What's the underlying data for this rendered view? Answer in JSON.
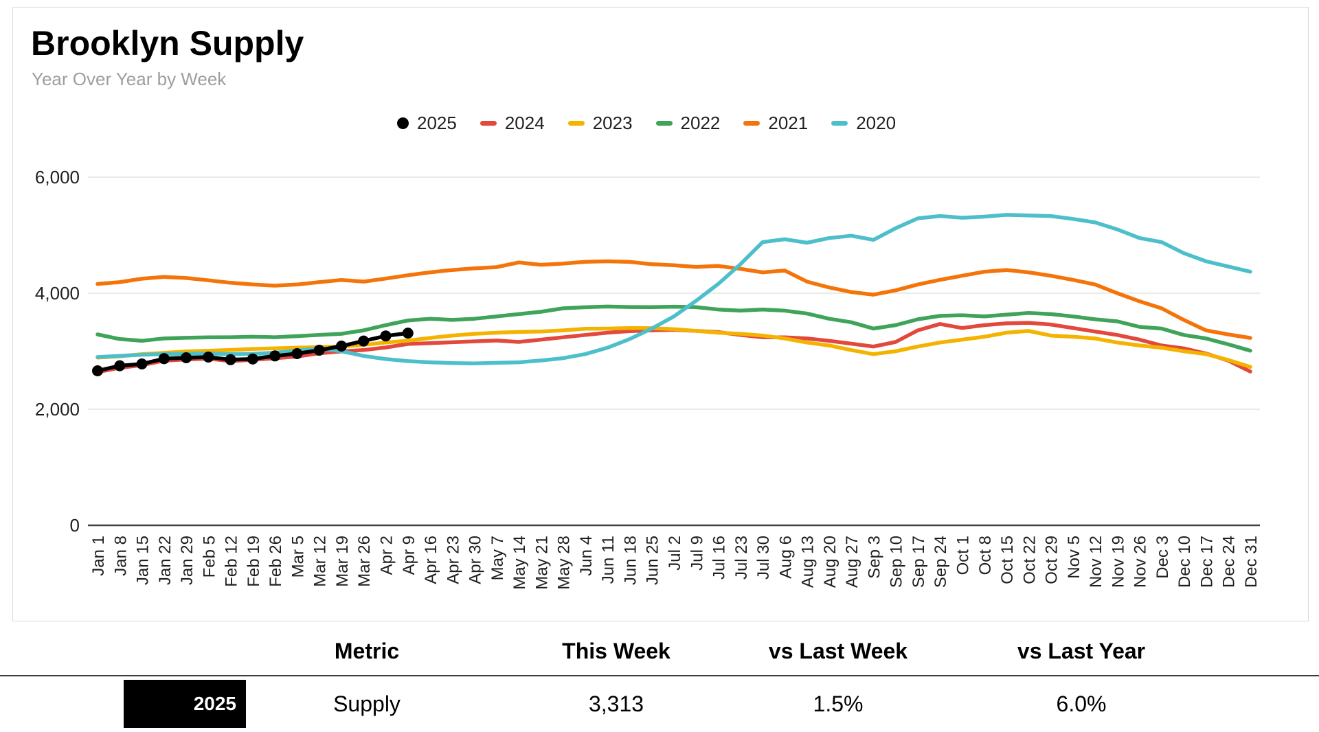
{
  "card": {
    "title": "Brooklyn Supply",
    "subtitle": "Year Over Year by Week"
  },
  "chart_data": {
    "type": "line",
    "title": "Brooklyn Supply",
    "subtitle": "Year Over Year by Week",
    "legend_position": "top",
    "grid": true,
    "colors": {
      "gridline": "#e3e3e3",
      "axis_line": "#424242",
      "tick_text": "#1f1f1f"
    },
    "y_axis": {
      "min": 0,
      "max": 6000,
      "ticks": [
        {
          "label": "0",
          "value": 0
        },
        {
          "label": "2,000",
          "value": 2000
        },
        {
          "label": "4,000",
          "value": 4000
        },
        {
          "label": "6,000",
          "value": 6000
        }
      ]
    },
    "x_labels": [
      "Jan 1",
      "Jan 8",
      "Jan 15",
      "Jan 22",
      "Jan 29",
      "Feb 5",
      "Feb 12",
      "Feb 19",
      "Feb 26",
      "Mar 5",
      "Mar 12",
      "Mar 19",
      "Mar 26",
      "Apr 2",
      "Apr 9",
      "Apr 16",
      "Apr 23",
      "Apr 30",
      "May 7",
      "May 14",
      "May 21",
      "May 28",
      "Jun 4",
      "Jun 11",
      "Jun 18",
      "Jun 25",
      "Jul 2",
      "Jul 9",
      "Jul 16",
      "Jul 23",
      "Jul 30",
      "Aug 6",
      "Aug 13",
      "Aug 20",
      "Aug 27",
      "Sep 3",
      "Sep 10",
      "Sep 17",
      "Sep 24",
      "Oct 1",
      "Oct 8",
      "Oct 15",
      "Oct 22",
      "Oct 29",
      "Nov 5",
      "Nov 12",
      "Nov 19",
      "Nov 26",
      "Dec 3",
      "Dec 10",
      "Dec 17",
      "Dec 24",
      "Dec 31"
    ],
    "series": [
      {
        "name": "2025",
        "color": "#000000",
        "marker": "circle",
        "values": [
          2663,
          2750,
          2781,
          2872,
          2887,
          2899,
          2855,
          2868,
          2920,
          2959,
          3018,
          3089,
          3176,
          3264,
          3313
        ]
      },
      {
        "name": "2024",
        "color": "#e3483d",
        "marker": "dash",
        "values": [
          2640,
          2715,
          2760,
          2838,
          2858,
          2872,
          2830,
          2852,
          2878,
          2910,
          2965,
          2998,
          3020,
          3065,
          3125,
          3140,
          3155,
          3170,
          3185,
          3160,
          3200,
          3240,
          3280,
          3320,
          3345,
          3360,
          3370,
          3350,
          3330,
          3280,
          3240,
          3240,
          3220,
          3180,
          3130,
          3080,
          3160,
          3360,
          3470,
          3400,
          3450,
          3480,
          3490,
          3460,
          3400,
          3340,
          3280,
          3200,
          3100,
          3050,
          2960,
          2840,
          2650
        ]
      },
      {
        "name": "2023",
        "color": "#f4b301",
        "marker": "dash",
        "values": [
          2891,
          2912,
          2950,
          2972,
          2998,
          3010,
          3022,
          3040,
          3051,
          3060,
          3072,
          3082,
          3110,
          3150,
          3182,
          3230,
          3270,
          3300,
          3320,
          3332,
          3340,
          3360,
          3388,
          3390,
          3400,
          3398,
          3380,
          3350,
          3320,
          3300,
          3270,
          3220,
          3150,
          3100,
          3020,
          2950,
          3000,
          3080,
          3150,
          3200,
          3250,
          3320,
          3350,
          3270,
          3250,
          3220,
          3150,
          3100,
          3060,
          3000,
          2950,
          2850,
          2730
        ]
      },
      {
        "name": "2022",
        "color": "#3fa35a",
        "marker": "dash",
        "values": [
          3290,
          3210,
          3180,
          3220,
          3232,
          3240,
          3242,
          3250,
          3242,
          3260,
          3280,
          3300,
          3360,
          3450,
          3530,
          3560,
          3540,
          3560,
          3600,
          3640,
          3680,
          3740,
          3758,
          3770,
          3762,
          3760,
          3768,
          3760,
          3720,
          3700,
          3720,
          3700,
          3650,
          3560,
          3500,
          3390,
          3450,
          3550,
          3610,
          3620,
          3600,
          3630,
          3660,
          3640,
          3600,
          3550,
          3515,
          3420,
          3390,
          3280,
          3220,
          3120,
          3010
        ]
      },
      {
        "name": "2021",
        "color": "#f5740a",
        "marker": "dash",
        "values": [
          4160,
          4190,
          4250,
          4280,
          4262,
          4222,
          4180,
          4150,
          4130,
          4150,
          4190,
          4228,
          4200,
          4252,
          4310,
          4360,
          4400,
          4430,
          4450,
          4530,
          4490,
          4510,
          4542,
          4550,
          4540,
          4500,
          4482,
          4452,
          4470,
          4420,
          4360,
          4390,
          4200,
          4100,
          4020,
          3975,
          4050,
          4150,
          4230,
          4300,
          4370,
          4400,
          4360,
          4300,
          4230,
          4150,
          4000,
          3860,
          3740,
          3540,
          3360,
          3290,
          3230
        ]
      },
      {
        "name": "2020",
        "color": "#4dbfcb",
        "marker": "dash",
        "values": [
          2900,
          2920,
          2940,
          2950,
          2955,
          2960,
          2950,
          2955,
          2975,
          3010,
          3050,
          3000,
          2920,
          2865,
          2830,
          2810,
          2795,
          2790,
          2800,
          2810,
          2840,
          2880,
          2950,
          3060,
          3210,
          3390,
          3600,
          3870,
          4160,
          4500,
          4880,
          4930,
          4870,
          4950,
          4990,
          4920,
          5120,
          5290,
          5330,
          5300,
          5320,
          5350,
          5340,
          5330,
          5280,
          5220,
          5100,
          4950,
          4880,
          4690,
          4550,
          4460,
          4370
        ]
      }
    ]
  },
  "table": {
    "headers": [
      "Metric",
      "This Week",
      "vs Last Week",
      "vs Last Year"
    ],
    "row": {
      "year": "2025",
      "metric": "Supply",
      "this_week": "3,313",
      "vs_last_week": "1.5%",
      "vs_last_year": "6.0%"
    }
  }
}
